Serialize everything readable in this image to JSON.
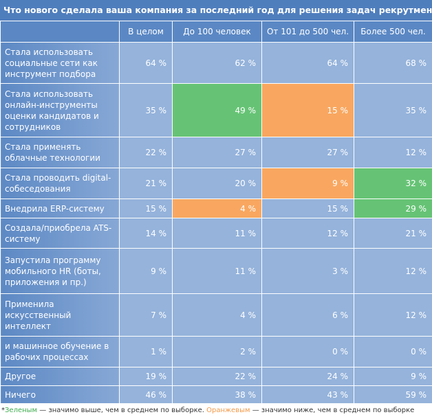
{
  "title": "Что нового сделала ваша компания за последний год для решения задач рекрутмента?*",
  "table": {
    "header": [
      "В целом",
      "До 100 человек",
      "От 101 до 500 чел.",
      "Более 500 чел."
    ],
    "rows": [
      {
        "label": "Стала использовать социальные сети как инструмент подбора",
        "cells": [
          {
            "text": "64 %"
          },
          {
            "text": "62 %"
          },
          {
            "text": "64 %"
          },
          {
            "text": "68 %"
          }
        ]
      },
      {
        "label": "Стала использовать онлайн-инструменты оценки кандидатов и сотрудников",
        "cells": [
          {
            "text": "35 %"
          },
          {
            "text": "49 %",
            "fill": "#66c375"
          },
          {
            "text": "15 %",
            "fill": "#f9a760"
          },
          {
            "text": "35 %"
          }
        ]
      },
      {
        "label": "Стала применять облачные технологии",
        "cells": [
          {
            "text": "22 %"
          },
          {
            "text": "27 %"
          },
          {
            "text": "27 %"
          },
          {
            "text": "12 %"
          }
        ]
      },
      {
        "label": "Стала проводить digital-собеседования",
        "cells": [
          {
            "text": "21 %"
          },
          {
            "text": "20 %"
          },
          {
            "text": "9 %",
            "fill": "#f9a760"
          },
          {
            "text": "32 %",
            "fill": "#66c375"
          }
        ]
      },
      {
        "label": "Внедрила ERP-систему",
        "cells": [
          {
            "text": "15 %"
          },
          {
            "text": "4 %",
            "fill": "#f9a760"
          },
          {
            "text": "15 %"
          },
          {
            "text": "29 %",
            "fill": "#66c375"
          }
        ]
      },
      {
        "label": "Создала/приобрела ATS-систему",
        "cells": [
          {
            "text": "14 %"
          },
          {
            "text": "11 %"
          },
          {
            "text": "12 %"
          },
          {
            "text": "21 %"
          }
        ]
      },
      {
        "label": "Запустила программу мобильного HR (боты, приложения и пр.)",
        "cells": [
          {
            "text": "9 %"
          },
          {
            "text": "11 %"
          },
          {
            "text": "3 %"
          },
          {
            "text": "12 %"
          }
        ]
      },
      {
        "label": "Применила искусственный интеллект",
        "cells": [
          {
            "text": "7 %"
          },
          {
            "text": "4 %"
          },
          {
            "text": "6 %"
          },
          {
            "text": "12 %"
          }
        ]
      },
      {
        "label": "и машинное обучение в рабочих процессах",
        "cells": [
          {
            "text": "1 %"
          },
          {
            "text": "2 %"
          },
          {
            "text": "0 %"
          },
          {
            "text": "0 %"
          }
        ]
      },
      {
        "label": "Другое",
        "cells": [
          {
            "text": "19 %"
          },
          {
            "text": "22 %"
          },
          {
            "text": "24 %"
          },
          {
            "text": "9 %"
          }
        ]
      },
      {
        "label": "Ничего",
        "cells": [
          {
            "text": "46 %"
          },
          {
            "text": "38 %"
          },
          {
            "text": "43 %"
          },
          {
            "text": "59 %"
          }
        ]
      }
    ]
  },
  "footnote": {
    "star": "*",
    "green_word": "Зеленым",
    "green_text": " — значимо выше, чем в среднем по выборке. ",
    "orange_word": "Оранжевым",
    "orange_text": " — значимо ниже, чем в среднем по выборке"
  }
}
